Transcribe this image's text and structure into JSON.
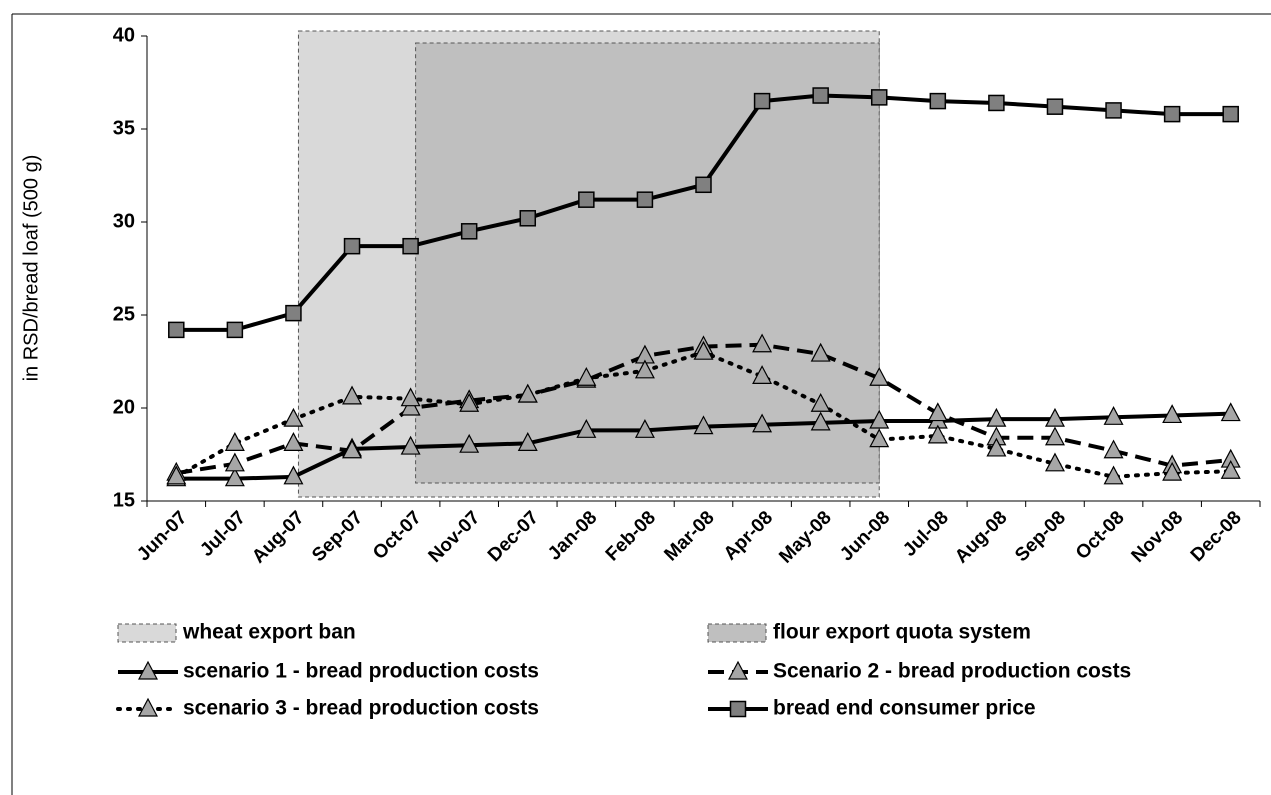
{
  "chart_data": {
    "type": "line",
    "ylabel": "in RSD/bread loaf (500 g)",
    "categories": [
      "Jun-07",
      "Jul-07",
      "Aug-07",
      "Sep-07",
      "Oct-07",
      "Nov-07",
      "Dec-07",
      "Jan-08",
      "Feb-08",
      "Mar-08",
      "Apr-08",
      "May-08",
      "Jun-08",
      "Jul-08",
      "Aug-08",
      "Sep-08",
      "Oct-08",
      "Nov-08",
      "Dec-08"
    ],
    "ylim": [
      15,
      40
    ],
    "yticks": [
      15,
      20,
      25,
      30,
      35,
      40
    ],
    "spans": [
      {
        "name": "wheat export ban",
        "color": "#d9d9d9",
        "start": "Aug-07",
        "end": "Jun-08"
      },
      {
        "name": "flour export quota system",
        "color": "#bfbfbf",
        "start": "Oct-07",
        "end": "Jun-08"
      }
    ],
    "series": [
      {
        "name": "scenario 1 - bread production costs",
        "color": "#000000",
        "marker_color": "#a6a6a6",
        "marker": "triangle",
        "dash": "solid",
        "values": [
          16.2,
          16.2,
          16.3,
          17.8,
          17.9,
          18.0,
          18.1,
          18.8,
          18.8,
          19.0,
          19.1,
          19.2,
          19.3,
          19.3,
          19.4,
          19.4,
          19.5,
          19.6,
          19.7
        ]
      },
      {
        "name": "Scenario 2 - bread production costs",
        "color": "#000000",
        "marker_color": "#a6a6a6",
        "marker": "triangle",
        "dash": "dashed",
        "values": [
          16.5,
          17.0,
          18.1,
          17.7,
          20.0,
          20.4,
          20.7,
          21.5,
          22.8,
          23.3,
          23.4,
          22.9,
          21.6,
          19.7,
          18.4,
          18.4,
          17.7,
          16.9,
          17.2
        ]
      },
      {
        "name": "scenario 3 - bread production costs",
        "color": "#000000",
        "marker_color": "#a6a6a6",
        "marker": "triangle",
        "dash": "dotted",
        "values": [
          16.3,
          18.1,
          19.4,
          20.6,
          20.5,
          20.2,
          20.7,
          21.6,
          22.0,
          23.0,
          21.7,
          20.2,
          18.3,
          18.5,
          17.8,
          17.0,
          16.3,
          16.5,
          16.6
        ]
      },
      {
        "name": "bread end consumer price",
        "color": "#000000",
        "marker_color": "#808080",
        "marker": "square",
        "dash": "solid",
        "values": [
          24.2,
          24.2,
          25.1,
          28.7,
          28.7,
          29.5,
          30.2,
          31.2,
          31.2,
          32.0,
          36.5,
          36.8,
          36.7,
          36.5,
          36.4,
          36.2,
          36.0,
          35.8,
          35.8
        ]
      }
    ]
  }
}
